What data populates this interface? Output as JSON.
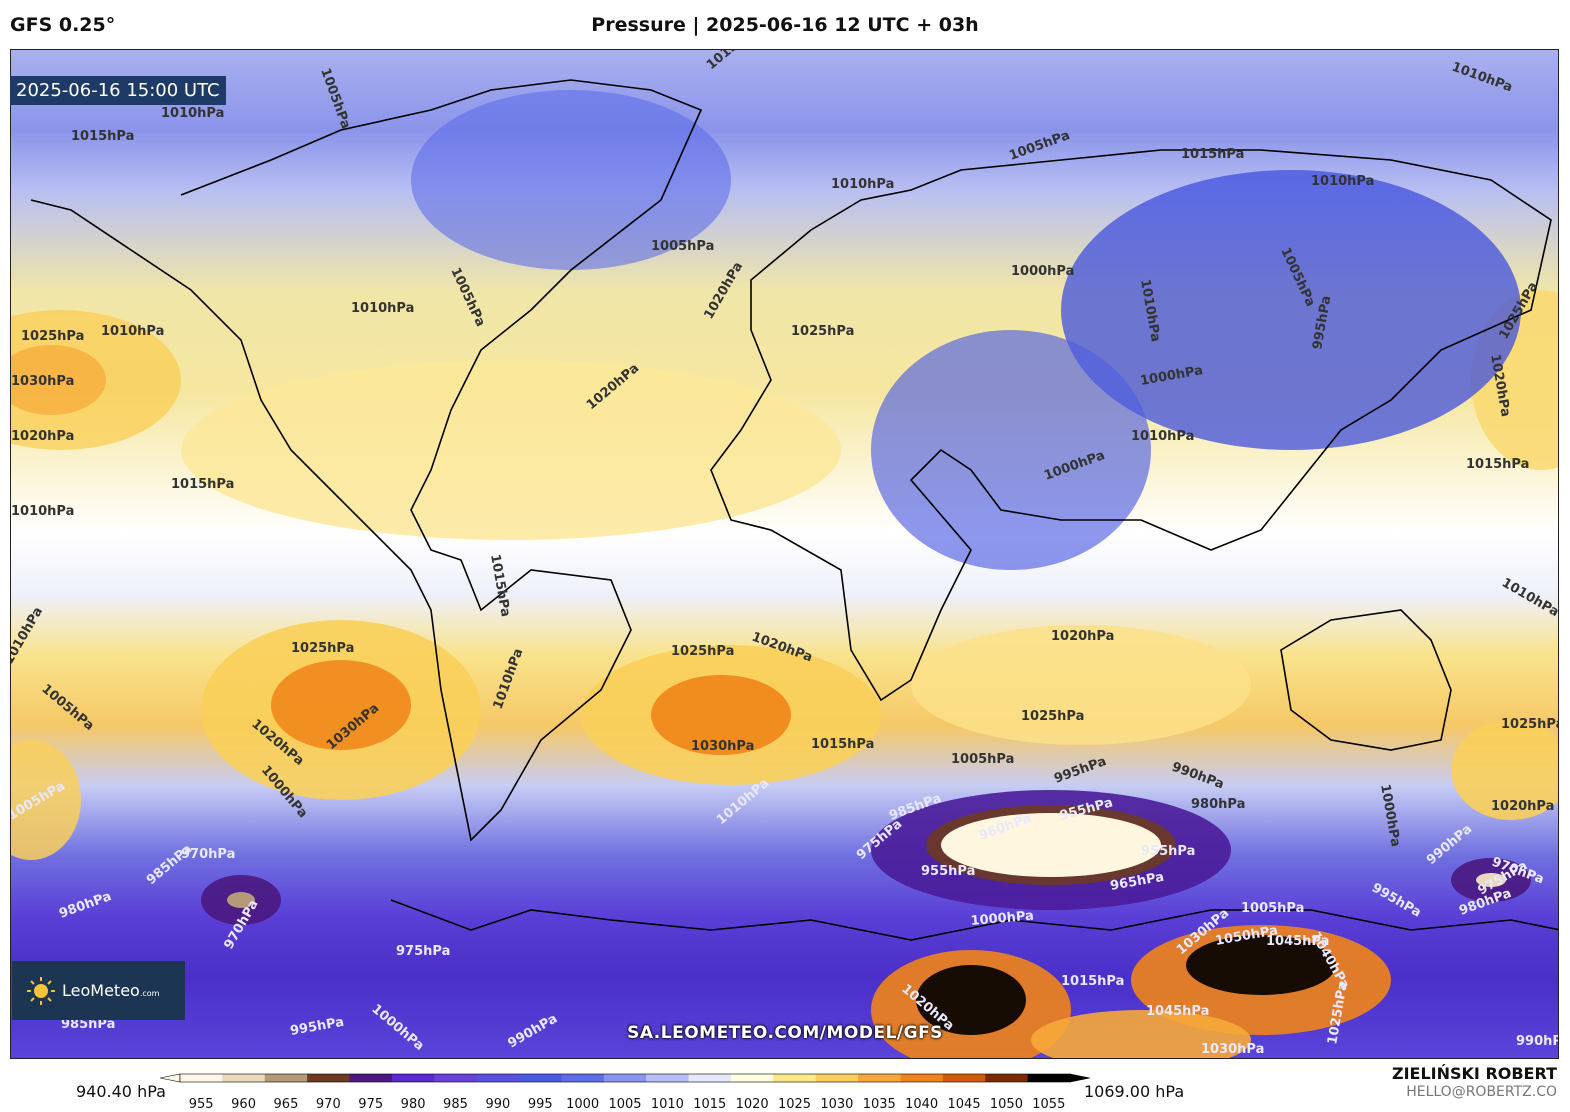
{
  "header": {
    "model": "GFS 0.25°",
    "title": "Pressure | 2025-06-16 12 UTC + 03h"
  },
  "map": {
    "valid_time": "2025-06-16 15:00 UTC",
    "url": "SA.LEOMETEO.COM/MODEL/GFS",
    "logo": {
      "brand": "LeoMeteo",
      "suffix": ".com"
    },
    "contour_labels": [
      "1010hPa",
      "1015hPa",
      "1005hPa",
      "1005hPa",
      "1015hPa",
      "1010hPa",
      "1015hPa",
      "1010hPa",
      "1005hPa",
      "1010hPa",
      "1005hPa",
      "1000hPa",
      "1010hPa",
      "1005hPa",
      "1020hPa",
      "1010hPa",
      "1010hPa",
      "1025hPa",
      "1025hPa",
      "1020hPa",
      "995hPa",
      "1000hPa",
      "1025hPa",
      "1030hPa",
      "1020hPa",
      "1020hPa",
      "1010hPa",
      "1000hPa",
      "1015hPa",
      "1015hPa",
      "1010hPa",
      "1015hPa",
      "1010hPa",
      "1020hPa",
      "1020hPa",
      "1010hPa",
      "1025hPa",
      "1025hPa",
      "1010hPa",
      "1005hPa",
      "1020hPa",
      "1030hPa",
      "1030hPa",
      "1015hPa",
      "1025hPa",
      "1025hPa",
      "1000hPa",
      "1005hPa",
      "995hPa",
      "990hPa",
      "980hPa",
      "1010hPa",
      "1000hPa",
      "1005hPa",
      "1020hPa",
      "985hPa",
      "960hPa",
      "955hPa",
      "975hPa",
      "955hPa",
      "955hPa",
      "990hPa",
      "985hPa",
      "970hPa",
      "970hPa",
      "980hPa",
      "965hPa",
      "1005hPa",
      "995hPa",
      "980hPa",
      "975hPa",
      "970hPa",
      "975hPa",
      "1000hPa",
      "1030hPa",
      "1050hPa",
      "1045hPa",
      "1040hPa",
      "1015hPa",
      "1020hPa",
      "1045hPa",
      "1030hPa",
      "1025hPa",
      "1000hPa",
      "995hPa",
      "990hPa",
      "985hPa",
      "990hPa"
    ]
  },
  "scale": {
    "min_label": "940.40 hPa",
    "max_label": "1069.00 hPa",
    "ticks": [
      "955",
      "960",
      "965",
      "970",
      "975",
      "980",
      "985",
      "990",
      "995",
      "1000",
      "1005",
      "1010",
      "1015",
      "1020",
      "1025",
      "1030",
      "1035",
      "1040",
      "1045",
      "1050",
      "1055"
    ],
    "colors": [
      "#fff8e8",
      "#e8d8bc",
      "#b59a7a",
      "#6b3a22",
      "#4a1880",
      "#5a2ad0",
      "#6a40e0",
      "#5a50e6",
      "#4a5ae8",
      "#5f6ee8",
      "#8a94ee",
      "#b8bef4",
      "#e6e8fb",
      "#fffde0",
      "#fbe88a",
      "#f9cf5a",
      "#f7a838",
      "#f08418",
      "#d05a08",
      "#7a2a04",
      "#000000"
    ]
  },
  "credits": {
    "name": "ZIELIŃSKI ROBERT",
    "email": "HELLO@ROBERTZ.CO"
  }
}
